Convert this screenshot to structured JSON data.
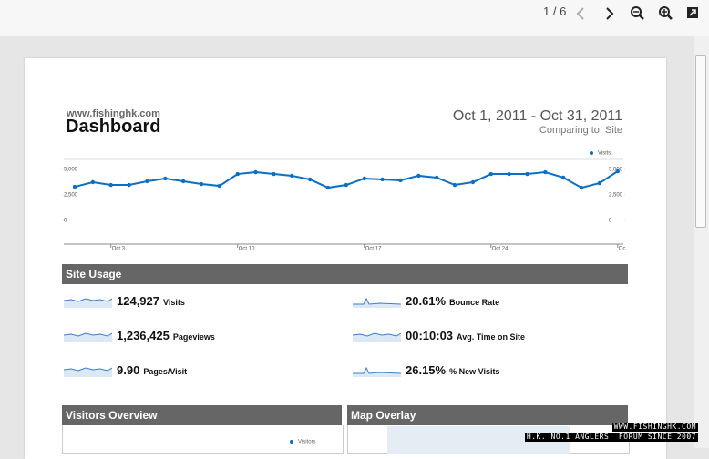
{
  "toolbar": {
    "page_indicator": "1 / 6"
  },
  "header": {
    "site": "www.fishinghk.com",
    "title": "Dashboard",
    "date_range": "Oct 1, 2011 - Oct 31, 2011",
    "comparison": "Comparing to: Site"
  },
  "chart_data": {
    "type": "line",
    "categories": [
      null,
      null,
      "Oct 3",
      null,
      null,
      null,
      null,
      null,
      null,
      "Oct 10",
      null,
      null,
      null,
      null,
      null,
      null,
      "Oct 17",
      null,
      null,
      null,
      null,
      null,
      null,
      "Oct 24",
      null,
      null,
      null,
      null,
      null,
      null,
      "Oc"
    ],
    "series": [
      {
        "name": "Visits",
        "color": "#0b6fc6",
        "values": [
          3300,
          3750,
          3480,
          3480,
          3840,
          4110,
          3840,
          3570,
          3390,
          4550,
          4730,
          4550,
          4380,
          4020,
          3210,
          3480,
          4110,
          4020,
          3930,
          4380,
          4200,
          3480,
          3750,
          4550,
          4550,
          4550,
          4730,
          4200,
          3210,
          3660,
          4820
        ]
      }
    ],
    "ylim": [
      0,
      5000
    ],
    "yticks": [
      0,
      {
        "value": 2500,
        "label": "2,500"
      },
      {
        "value": 5000,
        "label": "5,000"
      }
    ],
    "y2lim": [
      0,
      5000
    ],
    "y2ticks": [
      0,
      {
        "value": 2500,
        "label": "2,500"
      },
      {
        "value": 5000,
        "label": "5,000"
      }
    ],
    "grid": false
  },
  "site_usage": {
    "title": "Site Usage",
    "metrics": [
      {
        "value": "124,927",
        "label": "Visits"
      },
      {
        "value": "20.61%",
        "label": "Bounce Rate"
      },
      {
        "value": "1,236,425",
        "label": "Pageviews"
      },
      {
        "value": "00:10:03",
        "label": "Avg. Time on Site"
      },
      {
        "value": "9.90",
        "label": "Pages/Visit"
      },
      {
        "value": "26.15%",
        "label": "% New Visits"
      }
    ]
  },
  "panels": [
    {
      "title": "Visitors Overview",
      "legend": "Visitors"
    },
    {
      "title": "Map Overlay"
    }
  ],
  "watermark": {
    "site": "WWW.FISHINGHK.COM",
    "slogan": "H.K. NO.1 ANGLERS' FORUM SINCE 2007"
  }
}
